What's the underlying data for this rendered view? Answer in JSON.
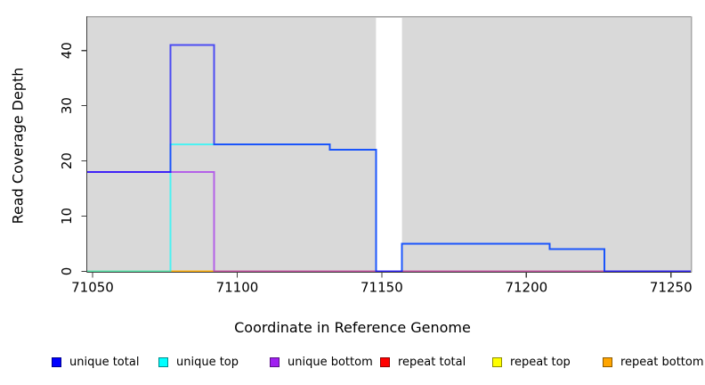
{
  "chart_data": {
    "type": "line",
    "subtype": "step",
    "title": "",
    "xlabel": "Coordinate in Reference Genome",
    "ylabel": "Read Coverage Depth",
    "xlim": [
      71048,
      71257
    ],
    "ylim": [
      0,
      46
    ],
    "xticks": [
      71050,
      71100,
      71150,
      71200,
      71250
    ],
    "yticks": [
      0,
      10,
      20,
      30,
      40
    ],
    "grid": false,
    "plot_background": "#d9d9d9",
    "line_opacity": 0.65,
    "masked_region": {
      "x_start": 71148,
      "x_end": 71157,
      "color": "#ffffff"
    },
    "series": [
      {
        "name": "repeat total",
        "color": "#ff0000",
        "steps": [
          [
            71048,
            0
          ],
          [
            71257,
            0
          ]
        ]
      },
      {
        "name": "repeat top",
        "color": "#ffff00",
        "steps": [
          [
            71048,
            0
          ],
          [
            71257,
            0
          ]
        ]
      },
      {
        "name": "repeat bottom",
        "color": "#ffa500",
        "steps": [
          [
            71048,
            0
          ],
          [
            71257,
            0
          ]
        ]
      },
      {
        "name": "unique top",
        "color": "#00ffff",
        "steps": [
          [
            71048,
            0
          ],
          [
            71077,
            23
          ],
          [
            71132,
            22
          ],
          [
            71148,
            0
          ],
          [
            71157,
            5
          ],
          [
            71208,
            4
          ],
          [
            71227,
            0
          ],
          [
            71257,
            0
          ]
        ]
      },
      {
        "name": "unique bottom",
        "color": "#a020f0",
        "steps": [
          [
            71048,
            18
          ],
          [
            71092,
            0
          ],
          [
            71257,
            0
          ]
        ]
      },
      {
        "name": "unique total",
        "color": "#0000ff",
        "steps": [
          [
            71048,
            18
          ],
          [
            71077,
            41
          ],
          [
            71092,
            23
          ],
          [
            71132,
            22
          ],
          [
            71148,
            0
          ],
          [
            71157,
            5
          ],
          [
            71208,
            4
          ],
          [
            71227,
            0
          ],
          [
            71257,
            0
          ]
        ]
      }
    ],
    "legend": {
      "position": "bottom",
      "items": [
        {
          "label": "unique total",
          "color": "#0000ff"
        },
        {
          "label": "unique top",
          "color": "#00ffff"
        },
        {
          "label": "unique bottom",
          "color": "#a020f0"
        },
        {
          "label": "repeat total",
          "color": "#ff0000"
        },
        {
          "label": "repeat top",
          "color": "#ffff00"
        },
        {
          "label": "repeat bottom",
          "color": "#ffa500"
        }
      ]
    }
  }
}
